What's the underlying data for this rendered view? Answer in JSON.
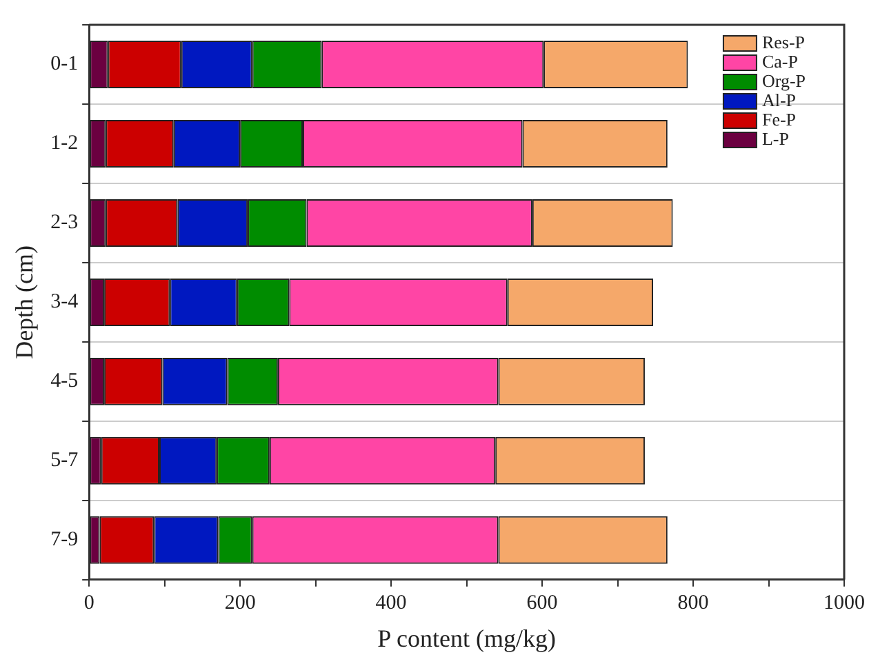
{
  "chart_data": {
    "type": "bar",
    "orientation": "horizontal",
    "stacked": true,
    "xlabel": "P content (mg/kg)",
    "ylabel": "Depth (cm)",
    "categories": [
      "0-1",
      "1-2",
      "2-3",
      "3-4",
      "4-5",
      "5-7",
      "7-9"
    ],
    "series": [
      {
        "name": "L-P",
        "color": "#6b0040",
        "values": [
          25,
          22,
          22,
          20,
          20,
          16,
          14
        ]
      },
      {
        "name": "Fe-P",
        "color": "#cc0000",
        "values": [
          97,
          90,
          95,
          87,
          77,
          77,
          72
        ]
      },
      {
        "name": "Al-P",
        "color": "#0018c0",
        "values": [
          94,
          88,
          93,
          89,
          86,
          76,
          85
        ]
      },
      {
        "name": "Org-P",
        "color": "#008c00",
        "values": [
          92,
          83,
          78,
          69,
          67,
          70,
          45
        ]
      },
      {
        "name": "Ca-P",
        "color": "#ff45a5",
        "values": [
          294,
          291,
          299,
          289,
          292,
          299,
          326
        ]
      },
      {
        "name": "Res-P",
        "color": "#f5a86a",
        "values": [
          191,
          192,
          186,
          193,
          194,
          198,
          224
        ]
      }
    ],
    "xlim": [
      0,
      1000
    ],
    "xticks": [
      0,
      {
        "value": 100,
        "label": null
      },
      200,
      {
        "value": 300,
        "label": null
      },
      400,
      {
        "value": 500,
        "label": null
      },
      600,
      {
        "value": 700,
        "label": null
      },
      800,
      {
        "value": 900,
        "label": null
      },
      1000
    ],
    "grid": "y",
    "legend": "top right"
  }
}
